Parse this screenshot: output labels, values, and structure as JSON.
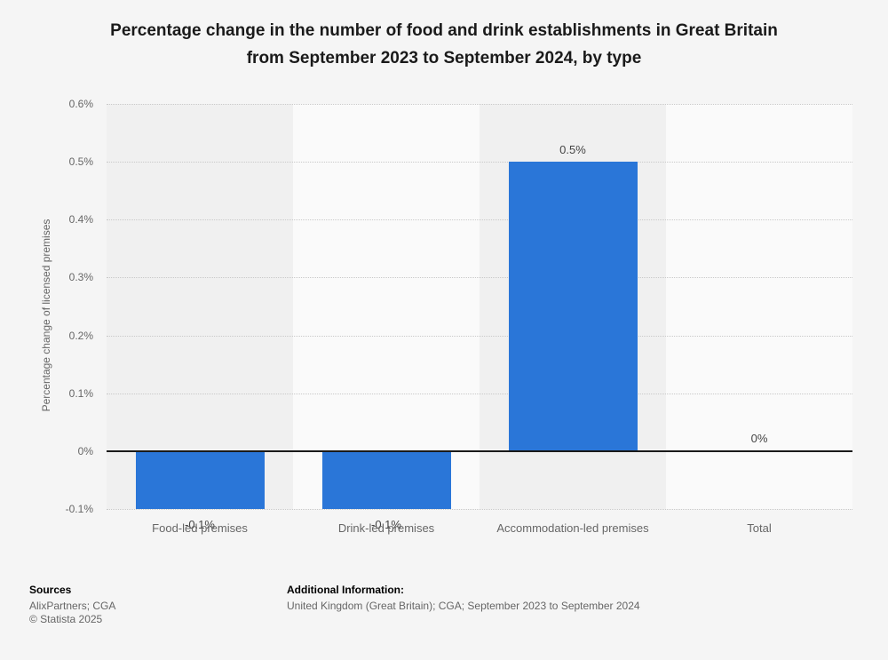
{
  "title": {
    "text": "Percentage change in the number of food and drink establishments in Great Britain from September 2023 to September 2024, by type",
    "lines": [
      "Percentage change in the number of food and drink establishments in Great Britain",
      "from September 2023 to September 2024, by type"
    ]
  },
  "chart_data": {
    "type": "bar",
    "title": "Percentage change in the number of food and drink establishments in Great Britain from September 2023 to September 2024, by type",
    "categories": [
      "Food-led premises",
      "Drink-led premises",
      "Accommodation-led premises",
      "Total"
    ],
    "values": [
      -0.1,
      -0.1,
      0.5,
      0
    ],
    "value_labels": [
      "-0.1%",
      "-0.1%",
      "0.5%",
      "0%"
    ],
    "xlabel": "",
    "ylabel": "Percentage change of licensed premises",
    "ylim": [
      -0.1,
      0.6
    ],
    "yticks": [
      0.6,
      0.5,
      0.4,
      0.3,
      0.2,
      0.1,
      0,
      -0.1
    ],
    "ytick_labels": [
      "0.6%",
      "0.5%",
      "0.4%",
      "0.3%",
      "0.2%",
      "0.1%",
      "0%",
      "-0.1%"
    ],
    "grid": "horizontal-dotted",
    "legend": "none",
    "bar_color": "#2a76d8"
  },
  "footer": {
    "sources_heading": "Sources",
    "sources": "AlixPartners; CGA",
    "copyright": "© Statista 2025",
    "additional_heading": "Additional Information:",
    "additional_text": "United Kingdom (Great Britain); CGA; September 2023 to September 2024"
  },
  "colors": {
    "bar": "#2a76d8",
    "background": "#f5f5f5",
    "band_odd": "#f0f0f0",
    "band_even": "#fafafa",
    "gridline": "#c9c9c9",
    "zero_line": "#1a1a1a",
    "title_text": "#1a1a1a",
    "axis_text": "#666666",
    "value_label_text": "#444444"
  }
}
